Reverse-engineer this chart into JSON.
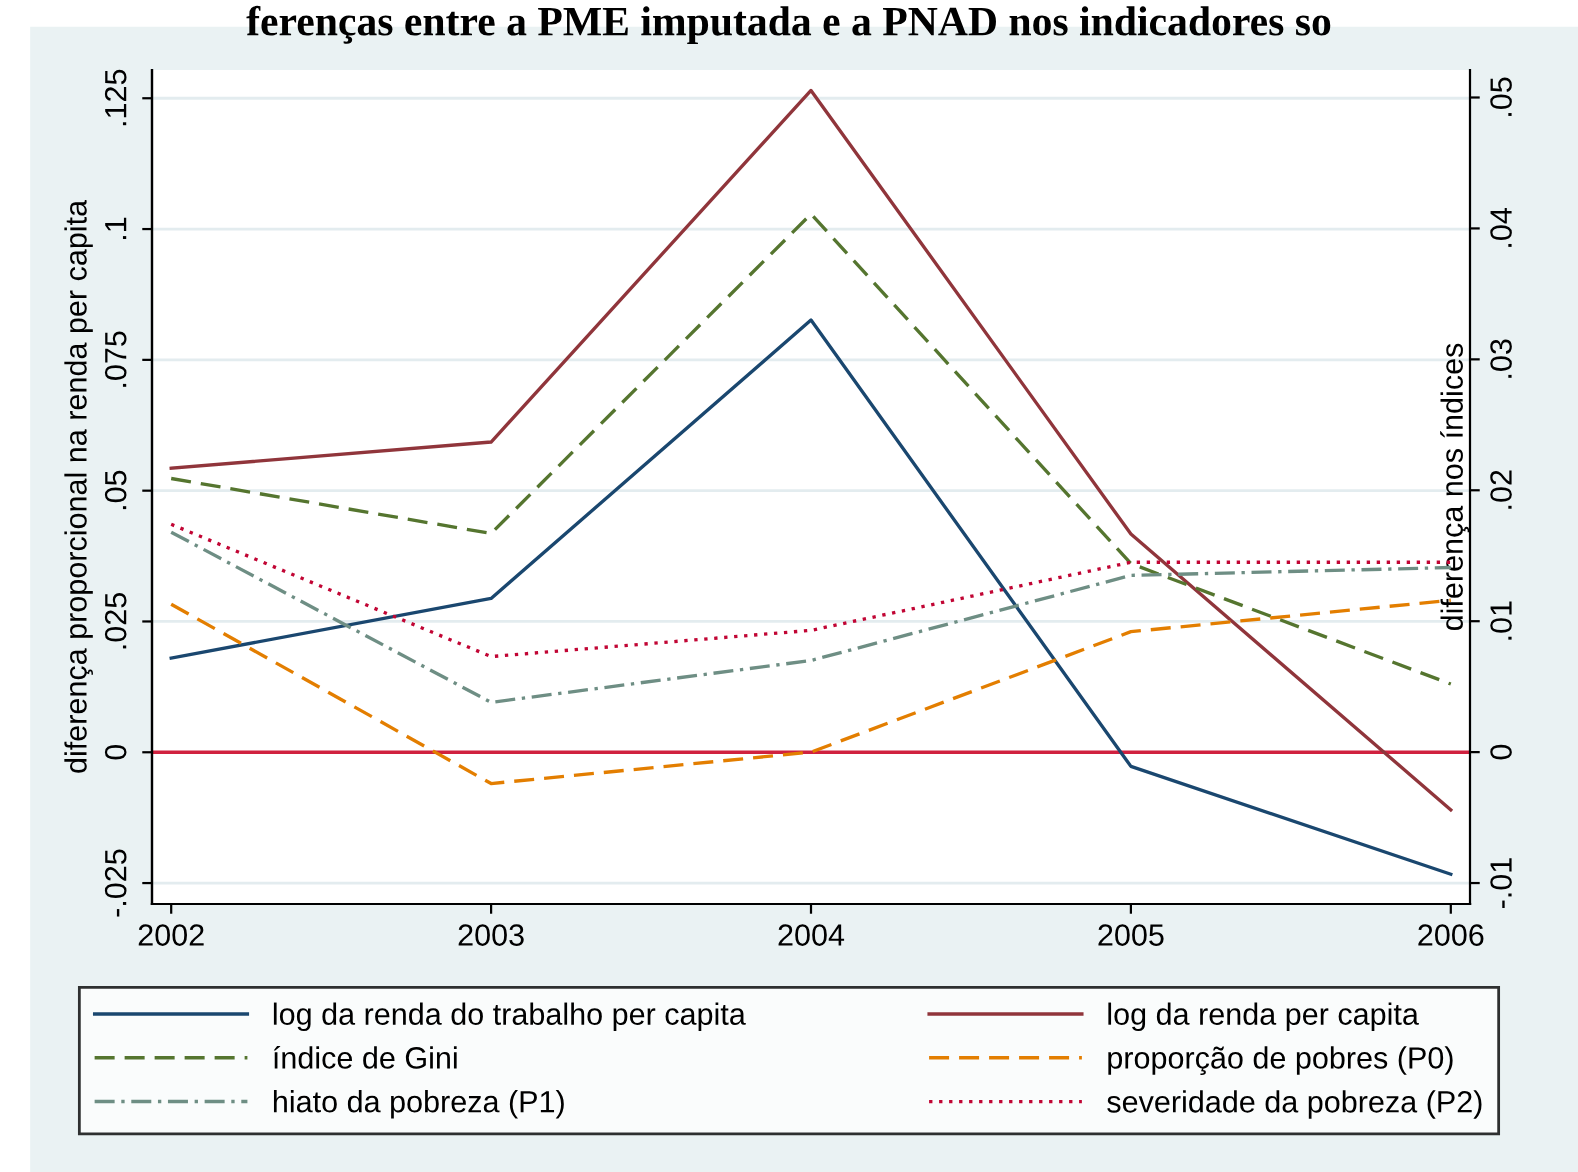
{
  "chart_data": {
    "type": "line",
    "title": "ferenças entre a PME imputada e a PNAD nos indicadores so",
    "ylabel": "diferença proporcional na renda per capita",
    "y2label": "diferença nos índices",
    "x": [
      2002,
      2003,
      2004,
      2005,
      2006
    ],
    "xlim": [
      2001.94,
      2006.06
    ],
    "xticks": [
      2002,
      2003,
      2004,
      2005,
      2006
    ],
    "ylim": [
      -0.029,
      0.1304
    ],
    "yticks": [
      {
        "value": -0.025,
        "label": "-.025"
      },
      {
        "value": 0,
        "label": "0"
      },
      {
        "value": 0.025,
        "label": ".025"
      },
      {
        "value": 0.05,
        "label": ".05"
      },
      {
        "value": 0.075,
        "label": ".075"
      },
      {
        "value": 0.1,
        "label": ".1"
      },
      {
        "value": 0.125,
        "label": ".125"
      }
    ],
    "y2lim": [
      -0.0116,
      0.0521
    ],
    "y2ticks": [
      {
        "value": -0.01,
        "label": "-.01"
      },
      {
        "value": 0,
        "label": "0"
      },
      {
        "value": 0.01,
        "label": ".01"
      },
      {
        "value": 0.02,
        "label": ".02"
      },
      {
        "value": 0.03,
        "label": ".03"
      },
      {
        "value": 0.04,
        "label": ".04"
      },
      {
        "value": 0.05,
        "label": ".05"
      }
    ],
    "grid": "y",
    "legend": "bottom",
    "ref_lines": [
      {
        "axis": "y",
        "value": 0,
        "color": "#d0213f"
      }
    ],
    "series": [
      {
        "name": "log da renda do trabalho per capita",
        "color": "#1a476f",
        "line_style": "solid",
        "values": [
          0.018,
          0.0294,
          0.0826,
          -0.0027,
          -0.0233
        ]
      },
      {
        "name": "log da renda per capita",
        "color": "#90353b",
        "line_style": "solid",
        "values": [
          0.0543,
          0.0593,
          0.1265,
          0.0417,
          -0.011
        ]
      },
      {
        "name": "índice de Gini",
        "color": "#55752f",
        "line_style": "dashed",
        "axis": "y2",
        "values": [
          0.0209,
          0.0167,
          0.0411,
          0.0144,
          0.0052
        ]
      },
      {
        "name": "proporção de pobres (P0)",
        "color": "#e37e00",
        "line_style": "dashed",
        "axis": "y2",
        "values": [
          0.0113,
          -0.0024,
          0.0,
          0.0092,
          0.0116
        ]
      },
      {
        "name": "hiato da pobreza (P1)",
        "color": "#6e8e84",
        "line_style": "dashdot",
        "axis": "y2",
        "values": [
          0.0168,
          0.0038,
          0.007,
          0.0135,
          0.0141
        ]
      },
      {
        "name": "severidade da pobreza (P2)",
        "color": "#c10534",
        "line_style": "dotted",
        "axis": "y2",
        "values": [
          0.0174,
          0.0073,
          0.0093,
          0.0145,
          0.0145
        ]
      }
    ]
  }
}
